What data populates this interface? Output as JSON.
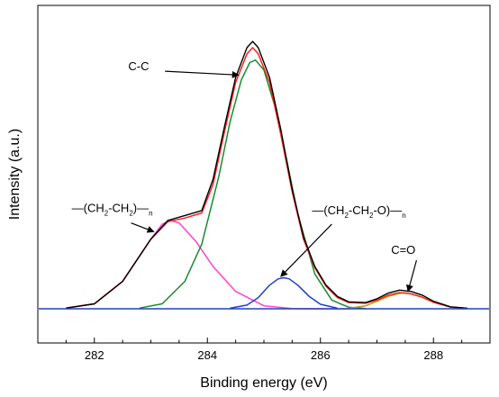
{
  "chart_data": {
    "type": "line",
    "title": "",
    "xlabel": "Binding energy (eV)",
    "ylabel": "Intensity (a.u.)",
    "xlim": [
      281,
      289
    ],
    "ylim": [
      0,
      1.08
    ],
    "xticks": [
      "282",
      "284",
      "286",
      "288"
    ],
    "grid": false,
    "legend": "none",
    "series": [
      {
        "role": "raw",
        "color": "#000000",
        "x": [
          281.5,
          282.0,
          282.5,
          283.0,
          283.3,
          283.6,
          283.9,
          284.1,
          284.3,
          284.5,
          284.7,
          284.8,
          284.9,
          285.1,
          285.3,
          285.5,
          285.7,
          285.9,
          286.1,
          286.3,
          286.5,
          286.8,
          287.0,
          287.2,
          287.4,
          287.6,
          287.8,
          288.0,
          288.3,
          288.6
        ],
        "y": [
          0.003,
          0.02,
          0.11,
          0.28,
          0.355,
          0.375,
          0.395,
          0.52,
          0.73,
          0.93,
          1.05,
          1.075,
          1.05,
          0.93,
          0.72,
          0.48,
          0.29,
          0.17,
          0.095,
          0.05,
          0.028,
          0.025,
          0.04,
          0.063,
          0.075,
          0.07,
          0.055,
          0.03,
          0.008,
          0.002
        ]
      },
      {
        "role": "fit-envelope",
        "color": "#ff2020",
        "x": [
          281.5,
          282.0,
          282.5,
          283.0,
          283.3,
          283.6,
          283.9,
          284.1,
          284.3,
          284.5,
          284.7,
          284.8,
          284.9,
          285.1,
          285.3,
          285.5,
          285.7,
          285.9,
          286.1,
          286.3,
          286.5,
          286.8,
          287.0,
          287.2,
          287.4,
          287.6,
          287.8,
          288.0,
          288.3,
          288.6
        ],
        "y": [
          0.003,
          0.02,
          0.11,
          0.28,
          0.35,
          0.365,
          0.385,
          0.5,
          0.71,
          0.91,
          1.025,
          1.05,
          1.025,
          0.91,
          0.7,
          0.47,
          0.28,
          0.165,
          0.09,
          0.045,
          0.025,
          0.022,
          0.035,
          0.055,
          0.065,
          0.06,
          0.047,
          0.026,
          0.007,
          0.002
        ]
      },
      {
        "role": "peak",
        "label": "-(CH2-CH2)n-",
        "color": "#ff40d0",
        "x": [
          281.5,
          282.0,
          282.5,
          283.0,
          283.2,
          283.35,
          283.5,
          283.8,
          284.1,
          284.5,
          285.0,
          285.5,
          286.0,
          286.5
        ],
        "y": [
          0.003,
          0.02,
          0.11,
          0.28,
          0.34,
          0.355,
          0.345,
          0.27,
          0.17,
          0.07,
          0.012,
          0.001,
          0.0,
          0.0
        ]
      },
      {
        "role": "peak",
        "label": "C-C",
        "color": "#1a8a2e",
        "x": [
          282.8,
          283.2,
          283.6,
          283.9,
          284.2,
          284.4,
          284.6,
          284.75,
          284.85,
          285.0,
          285.2,
          285.4,
          285.6,
          285.9,
          286.2,
          286.5,
          286.8
        ],
        "y": [
          0.003,
          0.02,
          0.11,
          0.26,
          0.53,
          0.75,
          0.92,
          0.99,
          1.0,
          0.96,
          0.81,
          0.6,
          0.38,
          0.14,
          0.035,
          0.006,
          0.001
        ]
      },
      {
        "role": "peak",
        "label": "-(CH2-CH2-O)n-",
        "color": "#1f3fcf",
        "x": [
          284.4,
          284.7,
          284.9,
          285.1,
          285.25,
          285.35,
          285.45,
          285.6,
          285.8,
          286.0,
          286.3
        ],
        "y": [
          0.002,
          0.015,
          0.045,
          0.095,
          0.12,
          0.125,
          0.12,
          0.095,
          0.05,
          0.018,
          0.002
        ]
      },
      {
        "role": "peak",
        "label": "C=O",
        "color": "#b8a000",
        "x": [
          286.5,
          286.8,
          287.0,
          287.2,
          287.4,
          287.5,
          287.6,
          287.8,
          288.0,
          288.3,
          288.6
        ],
        "y": [
          0.002,
          0.012,
          0.03,
          0.05,
          0.062,
          0.064,
          0.06,
          0.046,
          0.026,
          0.007,
          0.001
        ]
      }
    ],
    "annotations": [
      {
        "name": "annotation-c-c",
        "parts": [
          {
            "text": "C-C"
          }
        ],
        "text_at": [
          282.6,
          0.96
        ],
        "arrow_from": [
          283.25,
          0.955
        ],
        "arrow_to": [
          284.55,
          0.94
        ]
      },
      {
        "name": "annotation-ch2-ch2",
        "parts": [
          {
            "text": "—(CH"
          },
          {
            "text": "2",
            "sub": true
          },
          {
            "text": "-CH"
          },
          {
            "text": "2",
            "sub": true
          },
          {
            "text": ")—"
          },
          {
            "text": "n",
            "sub": true
          }
        ],
        "text_at": [
          281.6,
          0.39
        ],
        "arrow_from": [
          282.65,
          0.345
        ],
        "arrow_to": [
          283.05,
          0.31
        ]
      },
      {
        "name": "annotation-ch2-ch2-o",
        "parts": [
          {
            "text": "—(CH"
          },
          {
            "text": "2",
            "sub": true
          },
          {
            "text": "-CH"
          },
          {
            "text": "2",
            "sub": true
          },
          {
            "text": "-O)—"
          },
          {
            "text": "n",
            "sub": true
          }
        ],
        "text_at": [
          285.85,
          0.38
        ],
        "arrow_from": [
          286.2,
          0.34
        ],
        "arrow_to": [
          285.3,
          0.13
        ]
      },
      {
        "name": "annotation-c-o",
        "parts": [
          {
            "text": "C=O"
          }
        ],
        "text_at": [
          287.25,
          0.22
        ],
        "arrow_from": [
          287.7,
          0.195
        ],
        "arrow_to": [
          287.55,
          0.07
        ]
      }
    ]
  }
}
